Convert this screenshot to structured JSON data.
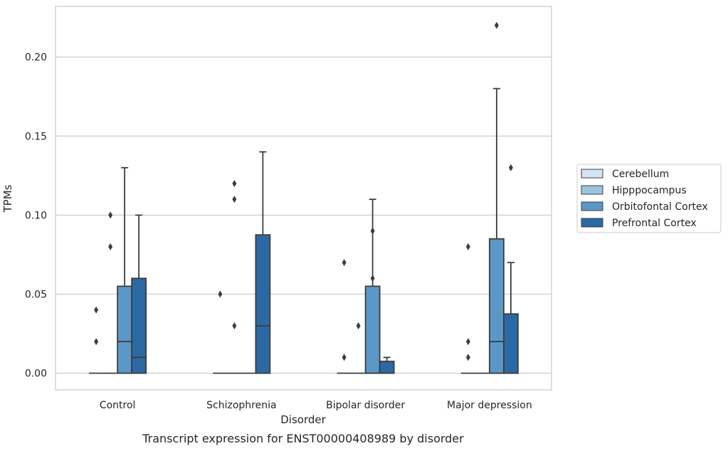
{
  "chart_data": {
    "type": "box",
    "title": "",
    "caption": "Transcript expression for ENST00000408989 by disorder",
    "xlabel": "Disorder",
    "ylabel": "TPMs",
    "ylim": [
      -0.0105,
      0.232
    ],
    "yticks": [
      0.0,
      0.05,
      0.1,
      0.15,
      0.2
    ],
    "ytick_labels": [
      "0.00",
      "0.05",
      "0.10",
      "0.15",
      "0.20"
    ],
    "grid": "horizontal",
    "legend_position": "right",
    "categories": [
      "Control",
      "Schizophrenia",
      "Bipolar disorder",
      "Major depression"
    ],
    "series": [
      {
        "name": "Cerebellum",
        "color": "#d5e4f1",
        "boxes": [
          {
            "q1": 0,
            "median": 0,
            "q3": 0,
            "whislo": 0,
            "whishi": 0,
            "fliers": [
              0.02,
              0.04
            ]
          },
          {
            "q1": 0,
            "median": 0,
            "q3": 0,
            "whislo": 0,
            "whishi": 0,
            "fliers": [
              0.05
            ]
          },
          {
            "q1": 0,
            "median": 0,
            "q3": 0,
            "whislo": 0,
            "whishi": 0,
            "fliers": [
              0.01,
              0.07
            ]
          },
          {
            "q1": 0,
            "median": 0,
            "q3": 0,
            "whislo": 0,
            "whishi": 0,
            "fliers": [
              0.01,
              0.02,
              0.08
            ]
          }
        ]
      },
      {
        "name": "Hipppocampus",
        "color": "#9ec4de",
        "boxes": [
          {
            "q1": 0,
            "median": 0,
            "q3": 0,
            "whislo": 0,
            "whishi": 0,
            "fliers": [
              0.08,
              0.1
            ]
          },
          {
            "q1": 0,
            "median": 0,
            "q3": 0,
            "whislo": 0,
            "whishi": 0,
            "fliers": [
              0.03,
              0.11,
              0.12
            ]
          },
          {
            "q1": 0,
            "median": 0,
            "q3": 0,
            "whislo": 0,
            "whishi": 0,
            "fliers": [
              0.03
            ]
          },
          {
            "q1": 0,
            "median": 0,
            "q3": 0,
            "whislo": 0,
            "whishi": 0,
            "fliers": []
          }
        ]
      },
      {
        "name": "Orbitofontal Cortex",
        "color": "#5b98c7",
        "boxes": [
          {
            "q1": 0,
            "median": 0.02,
            "q3": 0.055,
            "whislo": 0,
            "whishi": 0.13,
            "fliers": []
          },
          {
            "q1": 0,
            "median": 0,
            "q3": 0,
            "whislo": 0,
            "whishi": 0,
            "fliers": []
          },
          {
            "q1": 0,
            "median": 0,
            "q3": 0.055,
            "whislo": 0,
            "whishi": 0.11,
            "fliers": [
              0.06,
              0.09
            ]
          },
          {
            "q1": 0,
            "median": 0.02,
            "q3": 0.085,
            "whislo": 0,
            "whishi": 0.18,
            "fliers": [
              0.22
            ]
          }
        ]
      },
      {
        "name": "Prefrontal Cortex",
        "color": "#2b69a5",
        "boxes": [
          {
            "q1": 0,
            "median": 0.01,
            "q3": 0.06,
            "whislo": 0,
            "whishi": 0.1,
            "fliers": []
          },
          {
            "q1": 0,
            "median": 0.03,
            "q3": 0.0875,
            "whislo": 0,
            "whishi": 0.14,
            "fliers": []
          },
          {
            "q1": 0,
            "median": 0,
            "q3": 0.0075,
            "whislo": 0,
            "whishi": 0.01,
            "fliers": []
          },
          {
            "q1": 0,
            "median": 0,
            "q3": 0.0375,
            "whislo": 0,
            "whishi": 0.07,
            "fliers": [
              0.13
            ]
          }
        ]
      }
    ]
  }
}
